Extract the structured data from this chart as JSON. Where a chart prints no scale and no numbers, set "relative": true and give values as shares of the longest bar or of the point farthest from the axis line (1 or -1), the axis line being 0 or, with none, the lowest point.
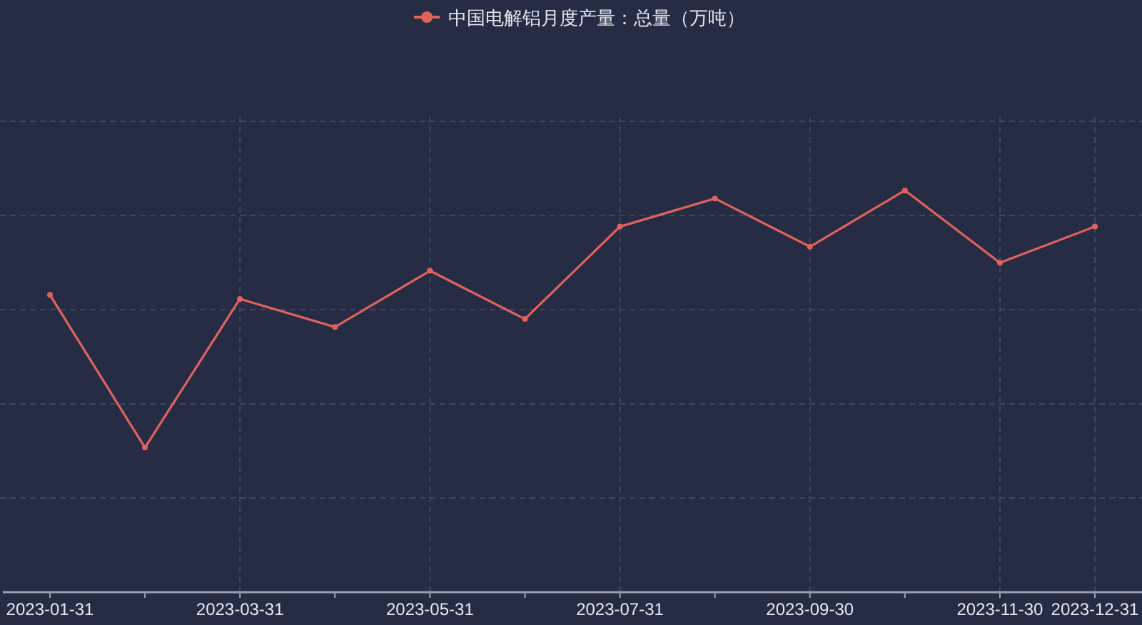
{
  "chart_data": {
    "type": "line",
    "relative": true,
    "categories": [
      "2023-01-31",
      null,
      "2023-03-31",
      null,
      "2023-05-31",
      null,
      "2023-07-31",
      null,
      "2023-09-30",
      null,
      "2023-11-30",
      "2023-12-31"
    ],
    "series": [
      {
        "name": "中国电解铝月度产量：总量（万吨）",
        "color": "#e0625c",
        "values": [
          0.74,
          0.36,
          0.73,
          0.66,
          0.8,
          0.68,
          0.91,
          0.98,
          0.86,
          1,
          0.82,
          0.91
        ]
      }
    ],
    "grid": true,
    "legend": "top",
    "marker": "circle",
    "line_style": "solid"
  }
}
